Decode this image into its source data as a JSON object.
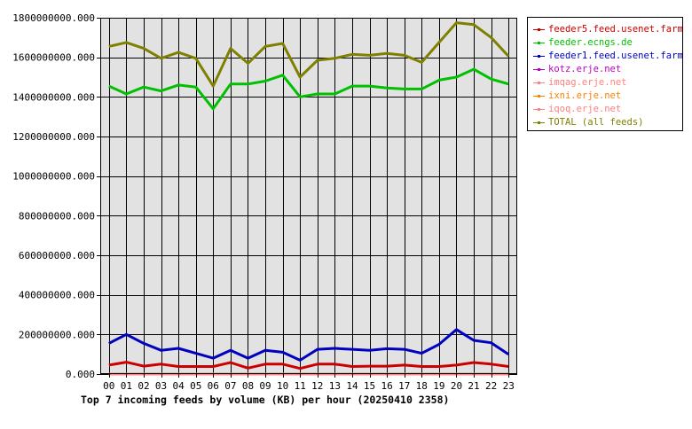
{
  "chart_data": {
    "type": "line",
    "title": "Top 7 incoming feeds by volume (KB) per hour (20250410 2358)",
    "xlabel": "",
    "ylabel": "",
    "categories": [
      "00",
      "01",
      "02",
      "03",
      "04",
      "05",
      "06",
      "07",
      "08",
      "09",
      "10",
      "11",
      "12",
      "13",
      "14",
      "15",
      "16",
      "17",
      "18",
      "19",
      "20",
      "21",
      "22",
      "23"
    ],
    "ylim": [
      0,
      1800000000
    ],
    "yticks": [
      {
        "value": 0,
        "label": "0.000"
      },
      {
        "value": 200000000,
        "label": "200000000.000"
      },
      {
        "value": 400000000,
        "label": "400000000.000"
      },
      {
        "value": 600000000,
        "label": "600000000.000"
      },
      {
        "value": 800000000,
        "label": "800000000.000"
      },
      {
        "value": 1000000000,
        "label": "1000000000.000"
      },
      {
        "value": 1200000000,
        "label": "1200000000.000"
      },
      {
        "value": 1400000000,
        "label": "1400000000.000"
      },
      {
        "value": 1600000000,
        "label": "1600000000.000"
      },
      {
        "value": 1800000000,
        "label": "1800000000.000"
      }
    ],
    "grid": true,
    "legend_position": "right",
    "plot_background": "#e2e2e2",
    "series": [
      {
        "name": "feeder5.feed.usenet.farm",
        "color": "#cc0000",
        "values": [
          45000000,
          60000000,
          40000000,
          50000000,
          38000000,
          38000000,
          38000000,
          58000000,
          30000000,
          50000000,
          50000000,
          28000000,
          50000000,
          50000000,
          38000000,
          40000000,
          40000000,
          45000000,
          38000000,
          38000000,
          45000000,
          58000000,
          50000000,
          38000000
        ]
      },
      {
        "name": "feeder.ecngs.de",
        "color": "#00c000",
        "values": [
          1455000000,
          1415000000,
          1450000000,
          1430000000,
          1460000000,
          1450000000,
          1340000000,
          1465000000,
          1465000000,
          1480000000,
          1510000000,
          1400000000,
          1415000000,
          1415000000,
          1455000000,
          1455000000,
          1445000000,
          1440000000,
          1440000000,
          1485000000,
          1500000000,
          1540000000,
          1490000000,
          1465000000
        ]
      },
      {
        "name": "feeder1.feed.usenet.farm",
        "color": "#0000c0",
        "values": [
          155000000,
          200000000,
          155000000,
          120000000,
          130000000,
          105000000,
          80000000,
          120000000,
          80000000,
          120000000,
          110000000,
          70000000,
          125000000,
          130000000,
          125000000,
          120000000,
          128000000,
          125000000,
          105000000,
          150000000,
          225000000,
          170000000,
          158000000,
          100000000
        ]
      },
      {
        "name": "kotz.erje.net",
        "color": "#c000c0",
        "values": [
          0,
          0,
          0,
          0,
          0,
          0,
          0,
          0,
          0,
          0,
          0,
          0,
          0,
          0,
          0,
          0,
          0,
          0,
          0,
          0,
          0,
          0,
          0,
          0
        ]
      },
      {
        "name": "imqag.erje.net",
        "color": "#ff8080",
        "values": [
          0,
          0,
          0,
          0,
          0,
          0,
          0,
          0,
          0,
          0,
          0,
          0,
          0,
          0,
          0,
          0,
          0,
          0,
          0,
          0,
          0,
          0,
          0,
          0
        ]
      },
      {
        "name": "ixni.erje.net",
        "color": "#ff8000",
        "values": [
          0,
          0,
          0,
          0,
          0,
          0,
          0,
          0,
          0,
          0,
          0,
          0,
          0,
          0,
          0,
          0,
          0,
          0,
          0,
          0,
          0,
          0,
          0,
          0
        ]
      },
      {
        "name": "iqoq.erje.net",
        "color": "#ff8080",
        "values": [
          0,
          0,
          0,
          0,
          0,
          0,
          0,
          0,
          0,
          0,
          0,
          0,
          0,
          0,
          0,
          0,
          0,
          0,
          0,
          0,
          0,
          0,
          0,
          0
        ]
      },
      {
        "name": "TOTAL (all feeds)",
        "color": "#808000",
        "values": [
          1655000000,
          1675000000,
          1645000000,
          1595000000,
          1625000000,
          1595000000,
          1455000000,
          1645000000,
          1570000000,
          1655000000,
          1670000000,
          1500000000,
          1585000000,
          1595000000,
          1615000000,
          1610000000,
          1620000000,
          1610000000,
          1575000000,
          1675000000,
          1775000000,
          1765000000,
          1700000000,
          1605000000
        ]
      }
    ]
  }
}
